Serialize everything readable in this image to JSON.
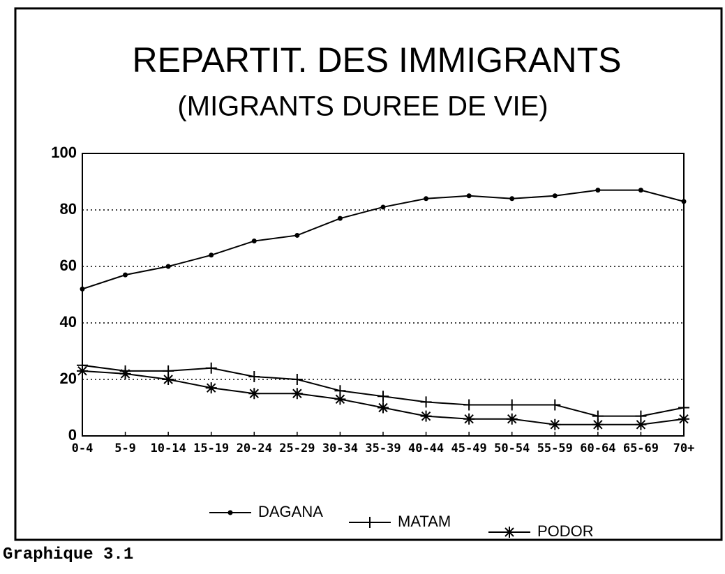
{
  "chart_data": {
    "type": "line",
    "title": "REPARTIT. DES IMMIGRANTS",
    "subtitle": "(MIGRANTS DUREE DE VIE)",
    "categories": [
      "0-4",
      "5-9",
      "10-14",
      "15-19",
      "20-24",
      "25-29",
      "30-34",
      "35-39",
      "40-44",
      "45-49",
      "50-54",
      "55-59",
      "60-64",
      "65-69",
      "70+"
    ],
    "series": [
      {
        "name": "DAGANA",
        "color": "#000000",
        "marker": "dot",
        "values": [
          52,
          57,
          60,
          64,
          69,
          71,
          77,
          81,
          84,
          85,
          84,
          85,
          87,
          87,
          83
        ]
      },
      {
        "name": "MATAM",
        "color": "#000000",
        "marker": "plus",
        "values": [
          25,
          23,
          23,
          24,
          21,
          20,
          16,
          14,
          12,
          11,
          11,
          11,
          7,
          7,
          10
        ]
      },
      {
        "name": "PODOR",
        "color": "#000000",
        "marker": "star",
        "values": [
          23,
          22,
          20,
          17,
          15,
          15,
          13,
          10,
          7,
          6,
          6,
          4,
          4,
          4,
          6
        ]
      }
    ],
    "ylim": [
      0,
      100
    ],
    "yticks": [
      0,
      20,
      40,
      60,
      80,
      100
    ],
    "grid": true,
    "caption": "Graphique 3.1"
  }
}
